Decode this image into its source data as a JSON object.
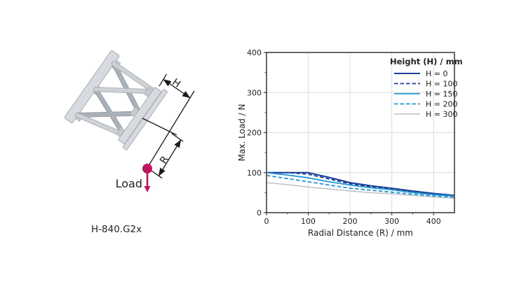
{
  "diagram": {
    "caption": "H-840.G2x",
    "load_label": "Load",
    "dim_labels": {
      "h": "H",
      "r": "R"
    },
    "colors": {
      "load_accent": "#c0135f",
      "plate_light": "#d7dade",
      "strut_light": "#ced2d7",
      "strut_dark": "#9fa6ae",
      "outline": "#a9afb6",
      "dim_line": "#1a1a1a"
    }
  },
  "chart_data": {
    "type": "line",
    "title": "",
    "xlabel": "Radial Distance (R) / mm",
    "ylabel": "Max. Load / N",
    "xlim": [
      0,
      450
    ],
    "ylim": [
      0,
      400
    ],
    "xticks": [
      0,
      100,
      200,
      300,
      400
    ],
    "yticks": [
      0,
      100,
      200,
      300,
      400
    ],
    "minor_tick_step": 50,
    "grid": true,
    "legend_title": "Height (H) / mm",
    "legend_position": "top-right",
    "x": [
      0,
      50,
      100,
      150,
      200,
      250,
      300,
      350,
      400,
      450
    ],
    "series": [
      {
        "name": "H = 0",
        "color": "#1b3f93",
        "style": "solid",
        "width": 2,
        "values": [
          100,
          100,
          100,
          88,
          75,
          67,
          61,
          54,
          48,
          43
        ]
      },
      {
        "name": "H = 100",
        "color": "#1b3f93",
        "style": "dashed",
        "width": 1.8,
        "values": [
          100,
          100,
          96,
          84,
          72,
          65,
          59,
          52,
          46,
          42
        ]
      },
      {
        "name": "H = 150",
        "color": "#2496d5",
        "style": "solid",
        "width": 1.8,
        "values": [
          100,
          94,
          87,
          77,
          69,
          62,
          57,
          50,
          45,
          41
        ]
      },
      {
        "name": "H = 200",
        "color": "#2496d5",
        "style": "dashed",
        "width": 1.8,
        "values": [
          93,
          85,
          77,
          69,
          61,
          56,
          51,
          46,
          42,
          38
        ]
      },
      {
        "name": "H = 300",
        "color": "#b7bec5",
        "style": "solid",
        "width": 1.4,
        "values": [
          75,
          70,
          64,
          59,
          54,
          50,
          47,
          43,
          39,
          36
        ]
      }
    ],
    "axis_color": "#3f4245",
    "grid_color": "#d8dbde",
    "text_color": "#222222"
  }
}
